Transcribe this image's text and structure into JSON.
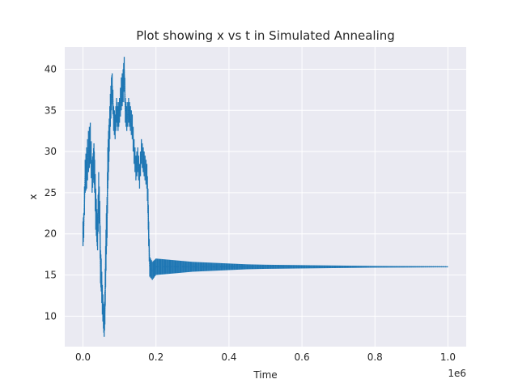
{
  "chart_data": {
    "type": "scatter",
    "title": "Plot showing x vs t in Simulated Annealing",
    "xlabel": "Time",
    "ylabel": "x",
    "x_offset_label": "1e6",
    "x_scale_factor": 1000000,
    "xlim": [
      -50000,
      1050000
    ],
    "ylim": [
      6.3,
      42.7
    ],
    "x_ticks": [
      0,
      200000,
      400000,
      600000,
      800000,
      1000000
    ],
    "x_tick_labels": [
      "0.0",
      "0.2",
      "0.4",
      "0.6",
      "0.8",
      "1.0"
    ],
    "y_ticks": [
      10,
      15,
      20,
      25,
      30,
      35,
      40
    ],
    "y_tick_labels": [
      "10",
      "15",
      "20",
      "25",
      "30",
      "35",
      "40"
    ],
    "grid": true,
    "background": "#eaeaf2",
    "series_color": "#1f77b4",
    "series": [
      {
        "x": [
          0,
          2000,
          6000,
          10000,
          15000,
          20000,
          25000,
          28000,
          30000,
          32000,
          35000,
          38000,
          40000,
          43000,
          46000,
          48000,
          50000,
          53000,
          56000,
          58000,
          60000,
          62000,
          64000,
          66000,
          68000,
          70000,
          72000,
          75000,
          78000,
          80000,
          84000,
          88000,
          92000,
          96000,
          100000,
          105000,
          110000,
          113000,
          116000,
          120000,
          125000,
          130000,
          135000,
          140000,
          145000,
          150000,
          155000,
          160000,
          165000,
          170000,
          175000,
          178000,
          180000,
          183000,
          190000,
          200000,
          250000,
          300000,
          350000,
          400000,
          450000,
          500000,
          600000,
          700000,
          800000,
          900000,
          1000000
        ],
        "y": [
          20,
          21,
          27,
          28,
          30,
          31,
          27,
          28,
          29,
          27,
          23,
          21,
          20,
          25,
          22,
          16,
          15,
          12,
          10,
          9,
          11,
          16,
          20,
          22,
          28,
          30,
          32,
          35,
          37,
          38,
          34,
          33,
          35,
          34,
          35,
          37,
          38,
          40,
          35,
          34,
          35,
          34,
          33,
          30,
          28,
          29,
          27,
          30,
          29,
          28,
          27,
          24,
          20,
          16,
          15.5,
          16,
          16,
          16,
          16,
          16,
          16,
          16,
          16,
          16,
          16,
          16,
          16
        ],
        "spread": [
          1.5,
          1.5,
          2.0,
          2.5,
          2.5,
          2.5,
          2.0,
          1.8,
          2.0,
          2.0,
          2.5,
          2.0,
          2.0,
          2.5,
          2.0,
          2.0,
          2.0,
          1.8,
          1.5,
          1.5,
          2.0,
          2.5,
          2.5,
          2.5,
          2.5,
          2.5,
          2.0,
          2.0,
          2.0,
          1.5,
          1.5,
          1.5,
          1.5,
          1.5,
          1.5,
          2.0,
          2.0,
          1.5,
          1.5,
          1.5,
          1.5,
          1.5,
          1.5,
          1.5,
          1.5,
          1.5,
          1.5,
          1.5,
          1.5,
          1.5,
          1.5,
          1.5,
          1.5,
          1.2,
          1.1,
          1.0,
          0.8,
          0.6,
          0.5,
          0.4,
          0.3,
          0.25,
          0.2,
          0.15,
          0.1,
          0.08,
          0.05
        ]
      }
    ]
  }
}
